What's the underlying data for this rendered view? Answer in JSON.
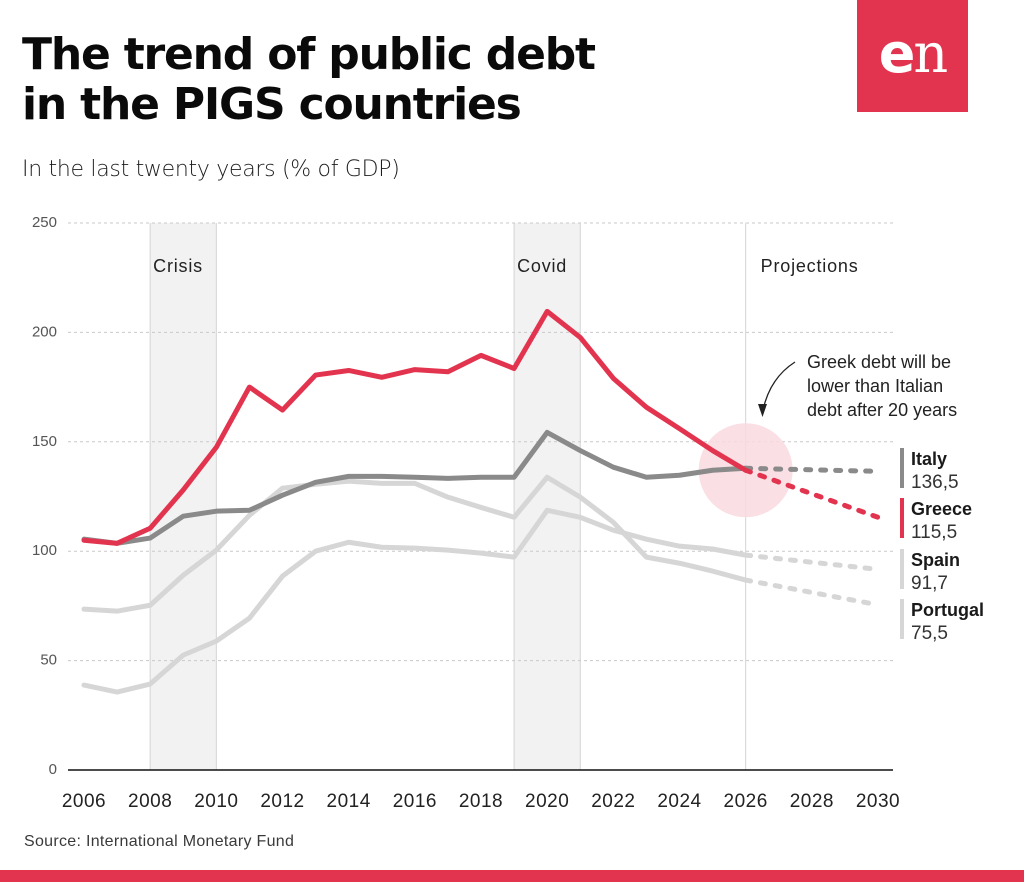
{
  "header": {
    "title_line1": "The trend of public debt",
    "title_line2": "in the PIGS countries",
    "subtitle": "In the last twenty years (% of GDP)",
    "logo_text_bold": "e",
    "logo_text_light": "n"
  },
  "colors": {
    "brand": "#e3344f",
    "greece": "#e3344f",
    "italy": "#8a8a8a",
    "spain": "#d6d6d6",
    "portugal": "#d6d6d6",
    "band": "#f2f2f2",
    "highlight_circle": "#f9d9df"
  },
  "footer": {
    "source": "Source: International Monetary Fund"
  },
  "chart_data": {
    "type": "line",
    "title": "The trend of public debt in the PIGS countries",
    "subtitle": "In the last twenty years (% of GDP)",
    "xlabel": "",
    "ylabel": "% of GDP",
    "xlim": [
      2006,
      2030
    ],
    "ylim": [
      0,
      250
    ],
    "x_ticks": [
      "2006",
      "2008",
      "2010",
      "2012",
      "2014",
      "2016",
      "2018",
      "2020",
      "2022",
      "2024",
      "2026",
      "2028",
      "2030"
    ],
    "y_ticks": [
      "0",
      "50",
      "100",
      "150",
      "200",
      "250"
    ],
    "y_tick_values": [
      0,
      50,
      100,
      150,
      200,
      250
    ],
    "grid": "horizontal dashed",
    "x": [
      2006,
      2007,
      2008,
      2009,
      2010,
      2011,
      2012,
      2013,
      2014,
      2015,
      2016,
      2017,
      2018,
      2019,
      2020,
      2021,
      2022,
      2023,
      2024,
      2025,
      2026
    ],
    "projection_x": [
      2026,
      2030
    ],
    "series": [
      {
        "name": "Spain",
        "values": [
          38.8,
          35.6,
          39.3,
          52.5,
          58.9,
          69.4,
          88.6,
          100.0,
          104.1,
          101.8,
          101.4,
          100.5,
          99.1,
          97.3,
          118.7,
          115.5,
          109.6,
          105.5,
          102.3,
          101.0,
          98.2
        ],
        "projection": [
          98.2,
          91.7
        ],
        "label_value": "91,7"
      },
      {
        "name": "Portugal",
        "values": [
          73.5,
          72.6,
          75.3,
          89.0,
          100.5,
          116.4,
          128.8,
          130.6,
          132.0,
          131.0,
          131.0,
          124.7,
          120.0,
          115.5,
          133.8,
          124.7,
          113.2,
          97.3,
          94.5,
          90.9,
          86.8
        ],
        "projection": [
          86.8,
          75.5
        ],
        "label_value": "75,5"
      },
      {
        "name": "Italy",
        "values": [
          105.5,
          103.6,
          106.0,
          116.0,
          118.3,
          118.7,
          125.6,
          131.5,
          134.2,
          134.2,
          133.8,
          133.3,
          133.8,
          133.8,
          154.3,
          146.0,
          138.4,
          133.8,
          134.7,
          137.0,
          137.9
        ],
        "projection": [
          137.9,
          136.5
        ],
        "label_value": "136,5"
      },
      {
        "name": "Greece",
        "values": [
          105.0,
          103.6,
          110.5,
          128.0,
          147.5,
          175.0,
          164.5,
          180.5,
          182.6,
          179.5,
          183.0,
          182.0,
          189.5,
          183.5,
          209.6,
          197.7,
          179.0,
          165.8,
          156.0,
          146.0,
          137.0
        ],
        "projection": [
          137.0,
          115.5
        ],
        "label_value": "115,5"
      }
    ],
    "legend_order": [
      "Italy",
      "Greece",
      "Spain",
      "Portugal"
    ],
    "legend_placement": "right",
    "bands": [
      {
        "label": "Crisis",
        "from": 2008,
        "to": 2010
      },
      {
        "label": "Covid",
        "from": 2019,
        "to": 2021
      }
    ],
    "projection_marker": {
      "label": "Projections",
      "x": 2026
    },
    "annotation": {
      "lines": [
        "Greek debt will be",
        "lower than Italian",
        "debt after 20 years"
      ],
      "points_to": {
        "x": 2026,
        "y": 137
      }
    }
  }
}
